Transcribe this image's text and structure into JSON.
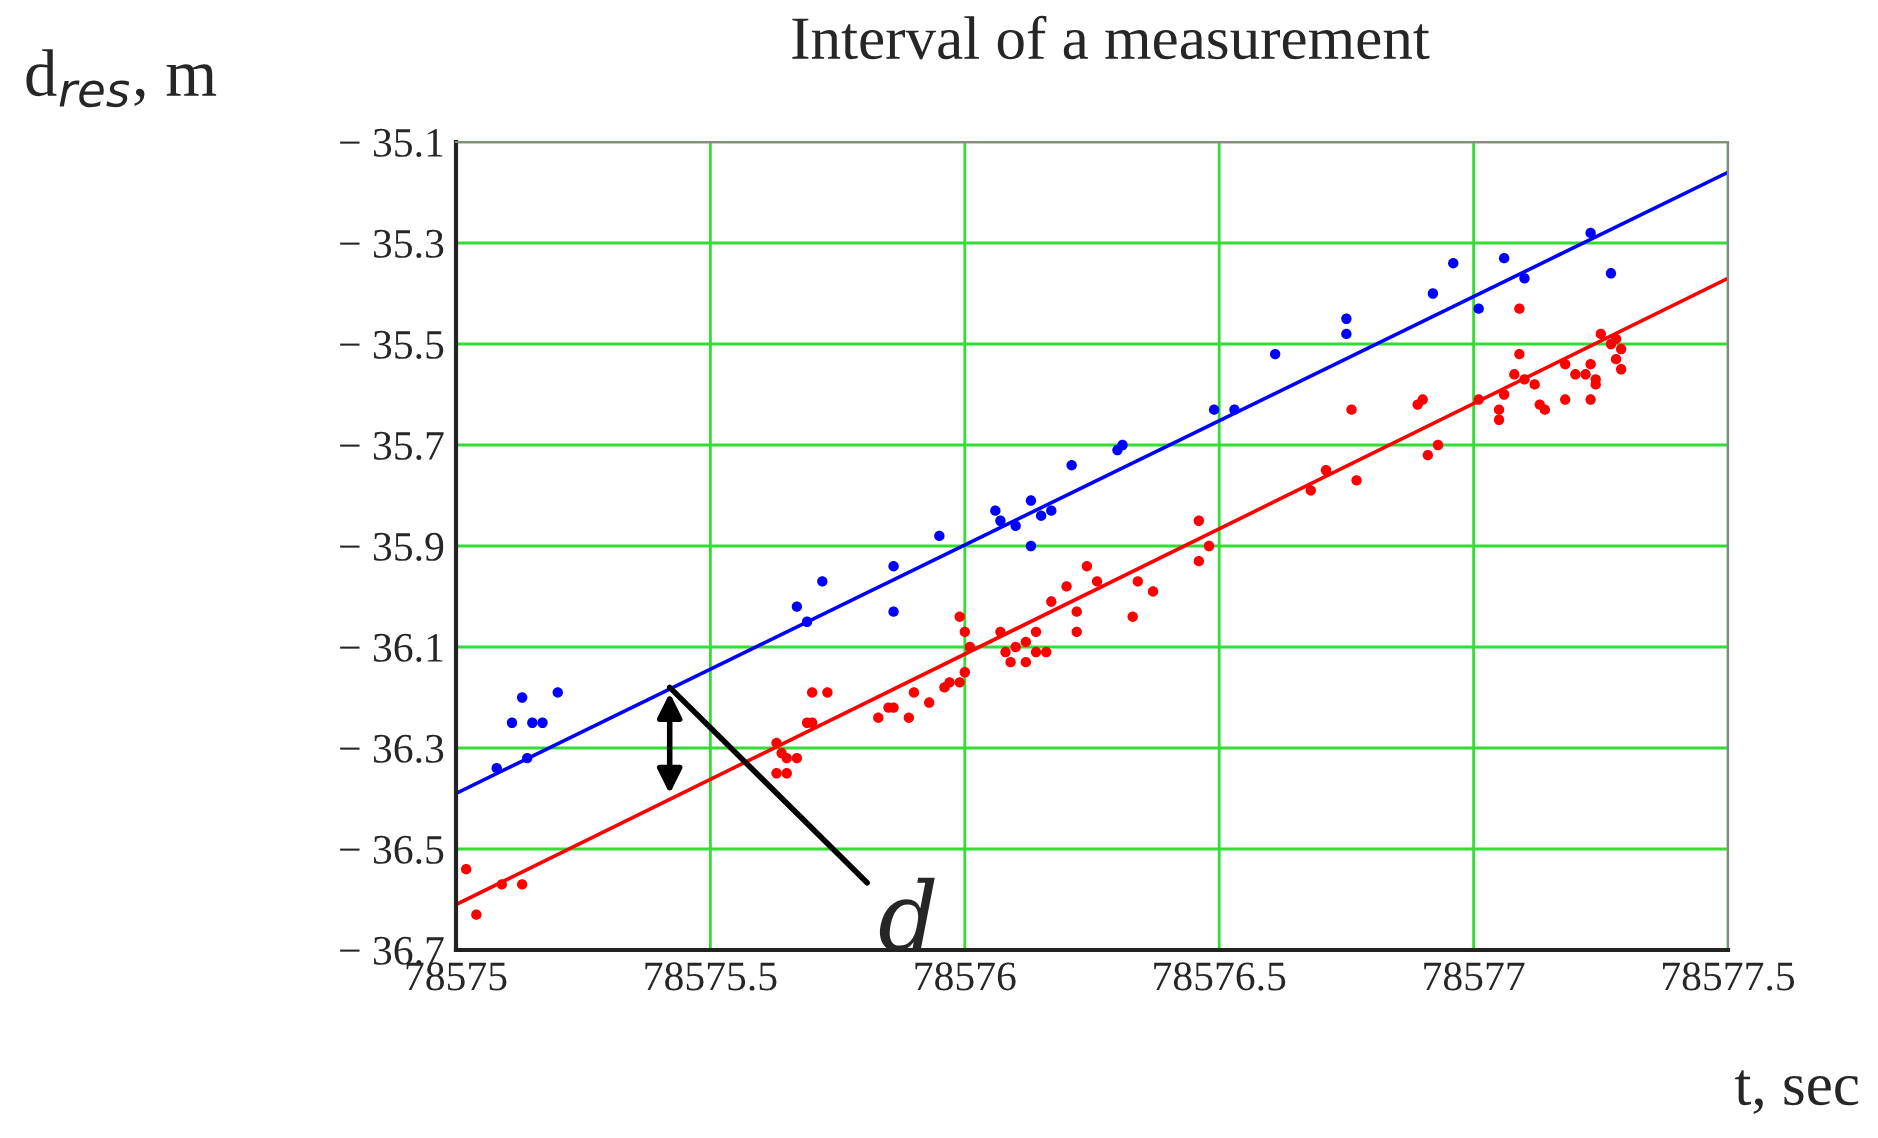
{
  "chart_data": {
    "type": "scatter",
    "title": "Interval of a measurement",
    "xlabel": "t, sec",
    "ylabel": "d$_{res}$, m",
    "xlim": [
      78575,
      78577.5
    ],
    "xticks": [
      78575,
      {
        "value": 78575.5,
        "label": "78575.5"
      },
      78576,
      {
        "value": 78576.5,
        "label": "78576.5"
      },
      78577,
      {
        "value": 78577.5,
        "label": "78577.5"
      }
    ],
    "ylim": [
      -36.7,
      -35.1
    ],
    "yticks": [
      {
        "value": -36.7,
        "label": "− 36.7"
      },
      {
        "value": -36.5,
        "label": "− 36.5"
      },
      {
        "value": -36.3,
        "label": "− 36.3"
      },
      {
        "value": -36.1,
        "label": "− 36.1"
      },
      {
        "value": -35.9,
        "label": "− 35.9"
      },
      {
        "value": -35.7,
        "label": "− 35.7"
      },
      {
        "value": -35.5,
        "label": "− 35.5"
      },
      {
        "value": -35.3,
        "label": "− 35.3"
      },
      {
        "value": -35.1,
        "label": "− 35.1"
      }
    ],
    "grid": true,
    "annotations": [
      {
        "text": "d",
        "x": 78575.42,
        "y": -36.18
      }
    ],
    "series": [
      {
        "marker": "circle",
        "color": "#0000ff",
        "x": [
          78575.08,
          78575.11,
          78575.13,
          78575.14,
          78575.15,
          78575.17,
          78575.2,
          78575.67,
          78575.69,
          78575.72,
          78575.86,
          78575.86,
          78575.95,
          78576.06,
          78576.07,
          78576.1,
          78576.13,
          78576.13,
          78576.15,
          78576.17,
          78576.21,
          78576.3,
          78576.31,
          78576.49,
          78576.53,
          78576.61,
          78576.75,
          78576.75,
          78576.92,
          78576.96,
          78577.01,
          78577.06,
          78577.1,
          78577.23,
          78577.27
        ],
        "values": [
          -36.34,
          -36.25,
          -36.2,
          -36.32,
          -36.25,
          -36.25,
          -36.19,
          -36.02,
          -36.05,
          -35.97,
          -36.03,
          -35.94,
          -35.88,
          -35.83,
          -35.85,
          -35.86,
          -35.9,
          -35.81,
          -35.84,
          -35.83,
          -35.74,
          -35.71,
          -35.7,
          -35.63,
          -35.63,
          -35.52,
          -35.48,
          -35.45,
          -35.4,
          -35.34,
          -35.43,
          -35.33,
          -35.37,
          -35.28,
          -35.36
        ]
      },
      {
        "marker": "circle",
        "color": "#ff0000",
        "x": [
          78575.02,
          78575.04,
          78575.09,
          78575.13,
          78575.63,
          78575.64,
          78575.65,
          78575.67,
          78575.63,
          78575.65,
          78575.69,
          78575.7,
          78575.7,
          78575.73,
          78575.83,
          78575.85,
          78575.86,
          78575.89,
          78575.9,
          78575.93,
          78575.96,
          78575.97,
          78575.99,
          78576.0,
          78576.01,
          78576.0,
          78575.99,
          78576.07,
          78576.08,
          78576.1,
          78576.09,
          78576.12,
          78576.12,
          78576.14,
          78576.14,
          78576.16,
          78576.17,
          78576.2,
          78576.22,
          78576.22,
          78576.24,
          78576.26,
          78576.33,
          78576.34,
          78576.37,
          78576.46,
          78576.46,
          78576.48,
          78576.68,
          78576.71,
          78576.77,
          78576.76,
          78576.89,
          78576.9,
          78576.91,
          78576.93,
          78577.01,
          78577.05,
          78577.06,
          78577.05,
          78577.09,
          78577.09,
          78577.08,
          78577.1,
          78577.12,
          78577.13,
          78577.14,
          78577.18,
          78577.18,
          78577.2,
          78577.22,
          78577.23,
          78577.23,
          78577.24,
          78577.25,
          78577.27,
          78577.28,
          78577.28,
          78577.29,
          78577.29,
          78577.24
        ],
        "values": [
          -36.54,
          -36.63,
          -36.57,
          -36.57,
          -36.29,
          -36.31,
          -36.32,
          -36.32,
          -36.35,
          -36.35,
          -36.25,
          -36.25,
          -36.19,
          -36.19,
          -36.24,
          -36.22,
          -36.22,
          -36.24,
          -36.19,
          -36.21,
          -36.18,
          -36.17,
          -36.04,
          -36.07,
          -36.1,
          -36.15,
          -36.17,
          -36.07,
          -36.11,
          -36.1,
          -36.13,
          -36.09,
          -36.13,
          -36.11,
          -36.07,
          -36.11,
          -36.01,
          -35.98,
          -36.03,
          -36.07,
          -35.94,
          -35.97,
          -36.04,
          -35.97,
          -35.99,
          -35.85,
          -35.93,
          -35.9,
          -35.79,
          -35.75,
          -35.77,
          -35.63,
          -35.62,
          -35.61,
          -35.72,
          -35.7,
          -35.61,
          -35.63,
          -35.6,
          -35.65,
          -35.43,
          -35.52,
          -35.56,
          -35.57,
          -35.58,
          -35.62,
          -35.63,
          -35.54,
          -35.61,
          -35.56,
          -35.56,
          -35.54,
          -35.61,
          -35.58,
          -35.48,
          -35.5,
          -35.49,
          -35.53,
          -35.51,
          -35.55,
          -35.57
        ]
      },
      {
        "type": "line",
        "marker": "none",
        "color": "#0000ff",
        "x": [
          78575,
          78577.5
        ],
        "values": [
          -36.39,
          -35.16
        ]
      },
      {
        "type": "line",
        "marker": "none",
        "color": "#ff0000",
        "x": [
          78575,
          78577.5
        ],
        "values": [
          -36.61,
          -35.37
        ]
      }
    ]
  }
}
